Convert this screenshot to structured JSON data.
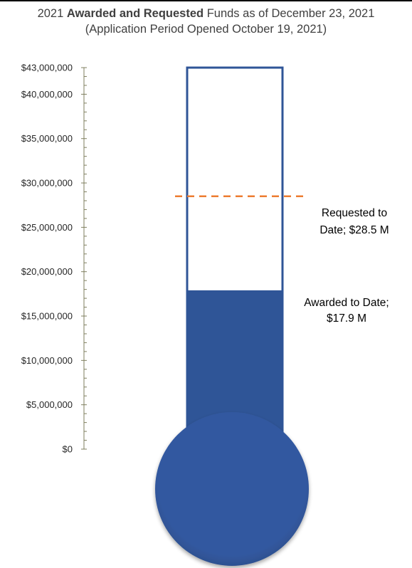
{
  "chart_data": {
    "type": "thermometer",
    "title": {
      "prefix": "2021 ",
      "bold": "Awarded and Requested",
      "suffix": " Funds as of December 23, 2021"
    },
    "subtitle": "(Application Period Opened October 19, 2021)",
    "ylim": [
      0,
      43000000
    ],
    "y_ticks": [
      {
        "value": 0,
        "label": "$0"
      },
      {
        "value": 5000000,
        "label": "$5,000,000"
      },
      {
        "value": 10000000,
        "label": "$10,000,000"
      },
      {
        "value": 15000000,
        "label": "$15,000,000"
      },
      {
        "value": 20000000,
        "label": "$20,000,000"
      },
      {
        "value": 25000000,
        "label": "$25,000,000"
      },
      {
        "value": 30000000,
        "label": "$30,000,000"
      },
      {
        "value": 35000000,
        "label": "$35,000,000"
      },
      {
        "value": 40000000,
        "label": "$40,000,000"
      },
      {
        "value": 43000000,
        "label": "$43,000,000"
      }
    ],
    "awarded": {
      "value": 17900000,
      "label_lines": [
        "Awarded to Date;",
        "$17.9 M"
      ]
    },
    "requested": {
      "value": 28500000,
      "label_lines": [
        "Requested to",
        "Date; $28.5 M"
      ]
    },
    "colors": {
      "fill": "#2f5597",
      "outline": "#2f5597",
      "requested_line": "#ed7d31",
      "axis": "#7f7f5f"
    }
  }
}
